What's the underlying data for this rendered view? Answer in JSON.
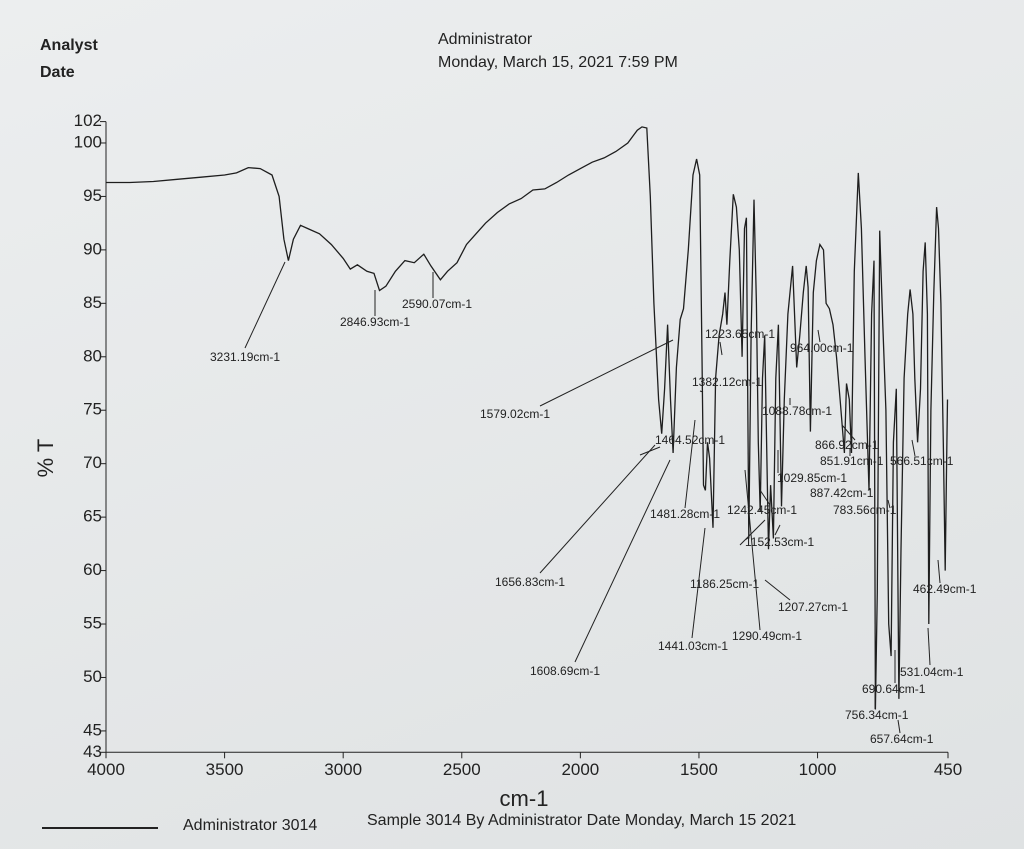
{
  "header": {
    "analyst_label": "Analyst",
    "date_label": "Date",
    "operator": "Administrator",
    "datetime": "Monday, March 15, 2021 7:59 PM"
  },
  "chart_data": {
    "type": "line",
    "xlabel": "cm-1",
    "ylabel": "% T",
    "xlim": [
      4000,
      450
    ],
    "ylim": [
      43,
      102
    ],
    "xticks": [
      4000,
      3500,
      3000,
      2500,
      2000,
      1500,
      1000,
      450
    ],
    "yticks": [
      43,
      45,
      50,
      55,
      60,
      65,
      70,
      75,
      80,
      85,
      90,
      95,
      100,
      102
    ],
    "series": [
      {
        "name": "Administrator 3014",
        "color": "#1e1e1e",
        "x": [
          4000,
          3900,
          3800,
          3700,
          3600,
          3500,
          3450,
          3400,
          3350,
          3300,
          3270,
          3250,
          3231,
          3210,
          3180,
          3150,
          3100,
          3050,
          3000,
          2970,
          2940,
          2900,
          2870,
          2847,
          2820,
          2780,
          2740,
          2700,
          2660,
          2630,
          2590,
          2560,
          2520,
          2480,
          2440,
          2400,
          2350,
          2300,
          2250,
          2200,
          2150,
          2100,
          2050,
          2000,
          1950,
          1900,
          1850,
          1800,
          1760,
          1740,
          1720,
          1705,
          1690,
          1670,
          1657,
          1645,
          1632,
          1620,
          1609,
          1595,
          1579,
          1565,
          1545,
          1525,
          1510,
          1497,
          1487,
          1481,
          1473,
          1464,
          1455,
          1441,
          1430,
          1415,
          1400,
          1390,
          1382,
          1370,
          1355,
          1342,
          1330,
          1318,
          1308,
          1300,
          1290,
          1280,
          1268,
          1258,
          1250,
          1242,
          1232,
          1223,
          1215,
          1207,
          1198,
          1186,
          1176,
          1165,
          1152,
          1140,
          1125,
          1105,
          1088,
          1075,
          1060,
          1048,
          1040,
          1030,
          1018,
          1005,
          990,
          975,
          964,
          950,
          935,
          920,
          905,
          887,
          878,
          866,
          857,
          845,
          828,
          815,
          800,
          783,
          772,
          762,
          756,
          748,
          738,
          725,
          712,
          700,
          690,
          680,
          668,
          657,
          648,
          635,
          620,
          610,
          598,
          590,
          578,
          566,
          555,
          546,
          537,
          531,
          522,
          510,
          498,
          490,
          480,
          470,
          462,
          456,
          452
        ],
        "values": [
          96.3,
          96.3,
          96.4,
          96.6,
          96.8,
          97.0,
          97.2,
          97.7,
          97.6,
          97.0,
          95.0,
          91.0,
          89.0,
          91.0,
          92.3,
          92.0,
          91.5,
          90.5,
          89.2,
          88.2,
          88.6,
          88.0,
          87.8,
          86.2,
          86.6,
          88.0,
          89.0,
          88.8,
          89.6,
          88.5,
          87.2,
          88.0,
          88.8,
          90.5,
          91.5,
          92.5,
          93.5,
          94.3,
          94.8,
          95.6,
          95.7,
          96.3,
          97.0,
          97.6,
          98.2,
          98.6,
          99.2,
          100.0,
          101.2,
          101.5,
          101.4,
          95.0,
          85.0,
          76.0,
          72.8,
          77.0,
          83.0,
          76.0,
          71.0,
          79.0,
          83.5,
          84.5,
          90.0,
          97.0,
          98.5,
          97.0,
          80.0,
          68.0,
          67.5,
          72.0,
          70.5,
          64.0,
          78.0,
          82.0,
          84.0,
          86.0,
          83.0,
          89.0,
          95.2,
          94.0,
          90.0,
          80.0,
          92.0,
          93.0,
          63.0,
          82.0,
          94.7,
          85.0,
          72.0,
          65.5,
          78.0,
          82.0,
          72.0,
          62.0,
          68.0,
          63.0,
          78.0,
          83.0,
          66.0,
          76.0,
          84.0,
          88.5,
          79.0,
          82.0,
          86.0,
          88.5,
          86.5,
          73.0,
          86.0,
          89.0,
          90.5,
          90.0,
          85.0,
          84.5,
          83.0,
          80.0,
          76.0,
          71.0,
          77.5,
          76.0,
          71.0,
          88.0,
          97.2,
          92.0,
          80.0,
          67.5,
          84.0,
          89.0,
          47.0,
          58.0,
          91.8,
          83.0,
          75.0,
          55.0,
          52.0,
          72.0,
          77.0,
          48.0,
          62.0,
          78.0,
          84.0,
          86.3,
          84.0,
          78.0,
          72.0,
          77.0,
          88.0,
          90.7,
          84.0,
          55.0,
          75.0,
          86.0,
          94.0,
          92.0,
          85.0,
          72.0,
          60.0,
          70.0,
          76.0
        ]
      }
    ],
    "annotations": [
      "3231.19cm-1",
      "2846.93cm-1",
      "2590.07cm-1",
      "1579.02cm-1",
      "1223.65cm-1",
      "964.00cm-1",
      "1382.12cm-1",
      "1088.78cm-1",
      "1464.52cm-1",
      "866.92cm-1",
      "851.91cm-1",
      "566.51cm-1",
      "1029.85cm-1",
      "887.42cm-1",
      "1481.28cm-1",
      "1242.45cm-1",
      "783.56cm-1",
      "1152.53cm-1",
      "1656.83cm-1",
      "1186.25cm-1",
      "1207.27cm-1",
      "462.49cm-1",
      "1441.03cm-1",
      "1290.49cm-1",
      "1608.69cm-1",
      "531.04cm-1",
      "690.64cm-1",
      "756.34cm-1",
      "657.64cm-1"
    ]
  },
  "footer": {
    "note": "Sample 3014 By Administrator Date Monday, March 15 2021"
  }
}
